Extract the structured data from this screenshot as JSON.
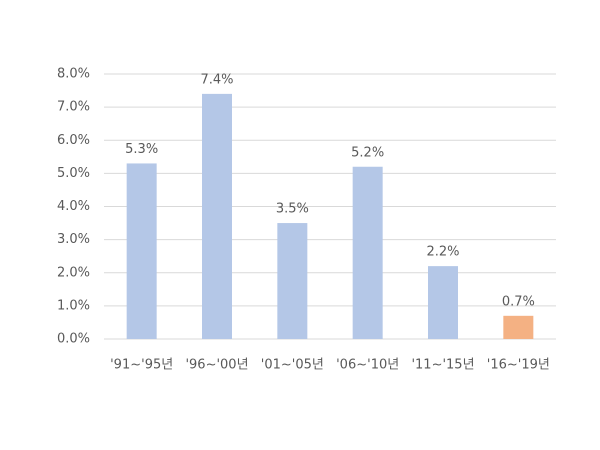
{
  "chart_data": {
    "type": "bar",
    "categories": [
      "'91~'95년",
      "'96~'00년",
      "'01~'05년",
      "'06~'10년",
      "'11~'15년",
      "'16~'19년"
    ],
    "values": [
      5.3,
      7.4,
      3.5,
      5.2,
      2.2,
      0.7
    ],
    "value_labels": [
      "5.3%",
      "7.4%",
      "3.5%",
      "5.2%",
      "2.2%",
      "0.7%"
    ],
    "colors": [
      "#b4c7e7",
      "#b4c7e7",
      "#b4c7e7",
      "#b4c7e7",
      "#b4c7e7",
      "#f4b183"
    ],
    "ylim": [
      0,
      8
    ],
    "yticks": [
      {
        "value": 0,
        "label": "0.0%"
      },
      {
        "value": 1,
        "label": "1.0%"
      },
      {
        "value": 2,
        "label": "2.0%"
      },
      {
        "value": 3,
        "label": "3.0%"
      },
      {
        "value": 4,
        "label": "4.0%"
      },
      {
        "value": 5,
        "label": "5.0%"
      },
      {
        "value": 6,
        "label": "6.0%"
      },
      {
        "value": 7,
        "label": "7.0%"
      },
      {
        "value": 8,
        "label": "8.0%"
      }
    ],
    "grid": true
  }
}
